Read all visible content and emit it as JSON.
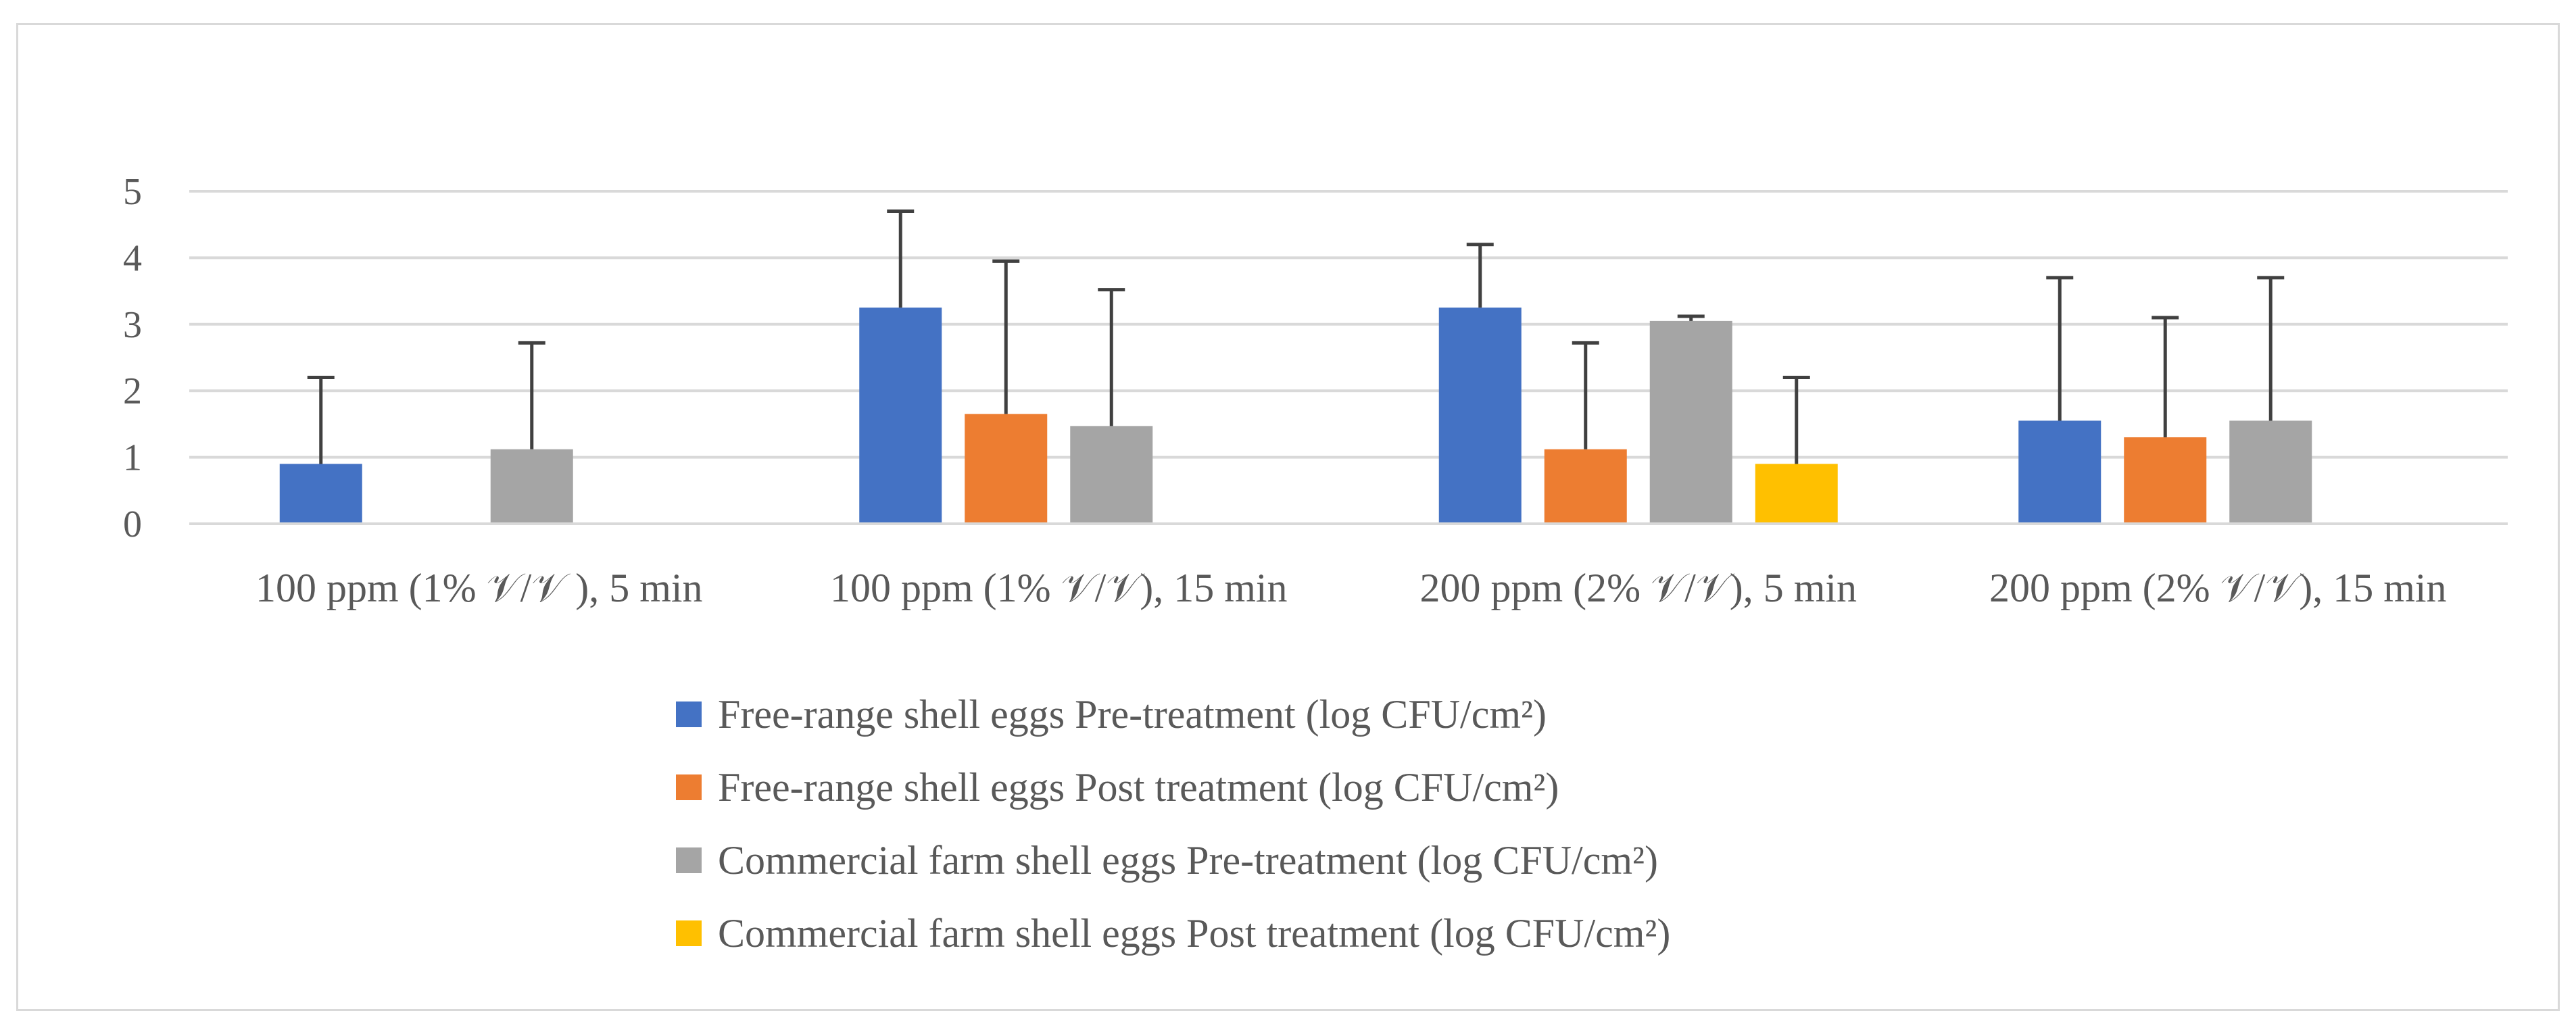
{
  "chart_data": {
    "type": "bar",
    "title": "",
    "xlabel": "",
    "ylabel": "",
    "ylim": [
      0,
      5
    ],
    "yticks": [
      0,
      1,
      2,
      3,
      4,
      5
    ],
    "grid": true,
    "legend_position": "bottom",
    "categories": [
      "100 ppm (1% 𝒱/𝒱 ), 5 min",
      "100 ppm (1% 𝒱/𝒱), 15 min",
      "200 ppm (2% 𝒱/𝒱), 5 min",
      "200 ppm (2% 𝒱/𝒱), 15 min"
    ],
    "series": [
      {
        "name": "Free-range shell eggs Pre-treatment (log CFU/cm²)",
        "color": "#4472c4",
        "values": [
          0.9,
          3.25,
          3.25,
          1.55
        ],
        "errors": [
          1.3,
          1.45,
          0.95,
          2.15
        ]
      },
      {
        "name": "Free-range shell eggs Post treatment (log CFU/cm²)",
        "color": "#ed7d31",
        "values": [
          0,
          1.65,
          1.12,
          1.3
        ],
        "errors": [
          0,
          2.3,
          1.6,
          1.8
        ]
      },
      {
        "name": "Commercial farm shell eggs Pre-treatment (log CFU/cm²)",
        "color": "#a5a5a5",
        "values": [
          1.12,
          1.47,
          3.05,
          1.55
        ],
        "errors": [
          1.6,
          2.05,
          0.07,
          2.15
        ]
      },
      {
        "name": "Commercial farm shell eggs Post treatment (log CFU/cm²)",
        "color": "#ffc000",
        "values": [
          0,
          0,
          0.9,
          0
        ],
        "errors": [
          0,
          0,
          1.3,
          0
        ]
      }
    ]
  }
}
